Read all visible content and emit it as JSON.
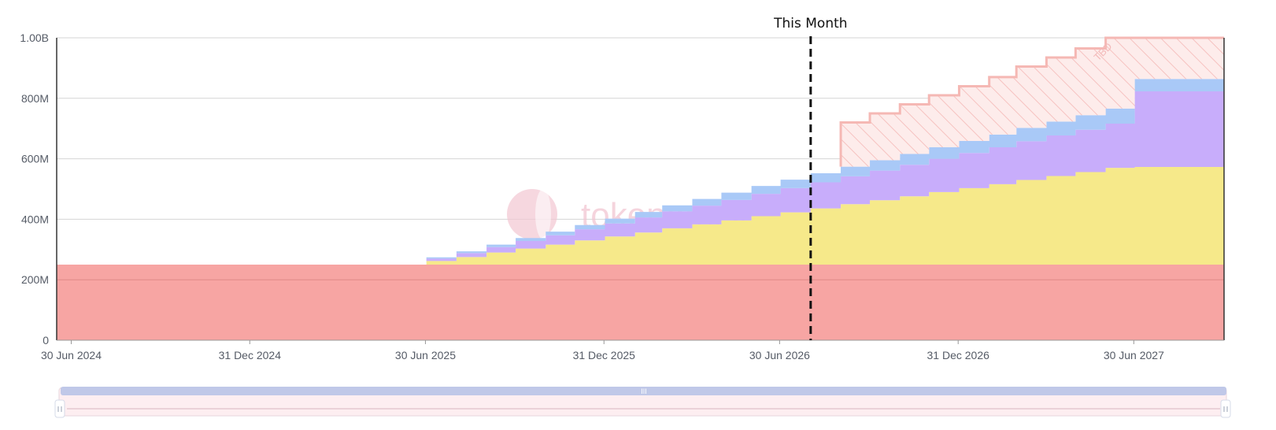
{
  "chart_data": {
    "type": "area",
    "step": true,
    "marker": {
      "label": "This Month",
      "date": "2026-08-01"
    },
    "watermark": "tokenomist",
    "tbd_label": "TBD",
    "x_ticks": [
      {
        "date": "2024-06-30",
        "label": "30 Jun 2024"
      },
      {
        "date": "2024-12-31",
        "label": "31 Dec 2024"
      },
      {
        "date": "2025-06-30",
        "label": "30 Jun 2025"
      },
      {
        "date": "2025-12-31",
        "label": "31 Dec 2025"
      },
      {
        "date": "2026-06-30",
        "label": "30 Jun 2026"
      },
      {
        "date": "2026-12-31",
        "label": "31 Dec 2026"
      },
      {
        "date": "2027-06-30",
        "label": "30 Jun 2027"
      }
    ],
    "y_ticks": [
      {
        "value": 0,
        "label": "0"
      },
      {
        "value": 200000000,
        "label": "200M"
      },
      {
        "value": 400000000,
        "label": "400M"
      },
      {
        "value": 600000000,
        "label": "600M"
      },
      {
        "value": 800000000,
        "label": "800M"
      },
      {
        "value": 1000000000,
        "label": "1.00B"
      }
    ],
    "xlim": [
      "2024-06-15",
      "2027-10-01"
    ],
    "ylim": [
      0,
      1000000000
    ],
    "grid": true,
    "months": [
      "2024-06-15",
      "2025-07-01",
      "2025-08-01",
      "2025-09-01",
      "2025-10-01",
      "2025-11-01",
      "2025-12-01",
      "2026-01-01",
      "2026-02-01",
      "2026-03-01",
      "2026-04-01",
      "2026-05-01",
      "2026-06-01",
      "2026-07-01",
      "2026-08-01",
      "2026-09-01",
      "2026-10-01",
      "2026-11-01",
      "2026-12-01",
      "2027-01-01",
      "2027-02-01",
      "2027-03-01",
      "2027-04-01",
      "2027-05-01",
      "2027-06-01",
      "2027-07-01",
      "2027-10-01"
    ],
    "series": [
      {
        "color": "#f7a5a3",
        "values": [
          250000000,
          250000000,
          250000000,
          250000000,
          250000000,
          250000000,
          250000000,
          250000000,
          250000000,
          250000000,
          250000000,
          250000000,
          250000000,
          250000000,
          250000000,
          250000000,
          250000000,
          250000000,
          250000000,
          250000000,
          250000000,
          250000000,
          250000000,
          250000000,
          250000000,
          250000000,
          250000000
        ]
      },
      {
        "color": "#f6e98a",
        "values": [
          0,
          12000000,
          25000000,
          40000000,
          53000000,
          66000000,
          80000000,
          93000000,
          106000000,
          120000000,
          133000000,
          146000000,
          160000000,
          173000000,
          186000000,
          200000000,
          213000000,
          226000000,
          240000000,
          253000000,
          266000000,
          280000000,
          293000000,
          306000000,
          320000000,
          323000000,
          323000000
        ]
      },
      {
        "color": "#c8adfb",
        "values": [
          0,
          8000000,
          13000000,
          18000000,
          25000000,
          31000000,
          37000000,
          43000000,
          50000000,
          56000000,
          62000000,
          68000000,
          74000000,
          80000000,
          86000000,
          92000000,
          98000000,
          104000000,
          110000000,
          116000000,
          122000000,
          128000000,
          134000000,
          140000000,
          146000000,
          250000000,
          250000000
        ]
      },
      {
        "color": "#a9c9f7",
        "values": [
          0,
          4000000,
          6000000,
          8000000,
          10000000,
          12000000,
          14000000,
          16000000,
          18000000,
          20000000,
          22000000,
          24000000,
          26000000,
          28000000,
          30000000,
          32000000,
          34000000,
          36000000,
          38000000,
          40000000,
          42000000,
          44000000,
          46000000,
          48000000,
          50000000,
          41000000,
          41000000
        ]
      }
    ],
    "tbd_band": {
      "color": "#f5b8b4",
      "months": [
        "2026-09-01",
        "2026-10-01",
        "2026-11-01",
        "2026-12-01",
        "2027-01-01",
        "2027-02-01",
        "2027-03-01",
        "2027-04-01",
        "2027-05-01",
        "2027-06-01",
        "2027-07-01",
        "2027-10-01"
      ],
      "upper": [
        720000000,
        750000000,
        780000000,
        810000000,
        840000000,
        870000000,
        905000000,
        935000000,
        965000000,
        1000000000,
        1000000000,
        1000000000
      ]
    }
  },
  "slider": {
    "handle_glyph": "III"
  }
}
